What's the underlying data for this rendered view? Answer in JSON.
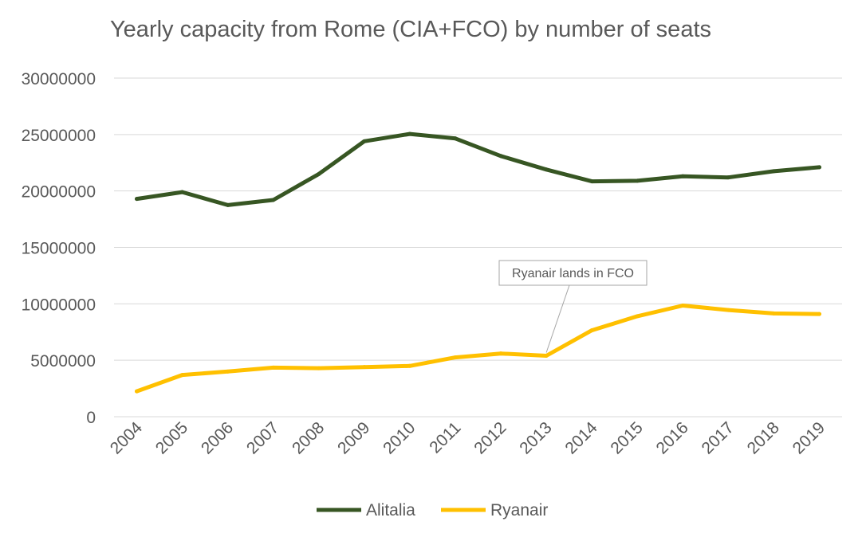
{
  "chart_data": {
    "type": "line",
    "title": "Yearly capacity from Rome (CIA+FCO) by number of seats",
    "xlabel": "",
    "ylabel": "",
    "categories": [
      "2004",
      "2005",
      "2006",
      "2007",
      "2008",
      "2009",
      "2010",
      "2011",
      "2012",
      "2013",
      "2014",
      "2015",
      "2016",
      "2017",
      "2018",
      "2019"
    ],
    "ylim": [
      0,
      30000000
    ],
    "yticks": [
      "0",
      "5000000",
      "10000000",
      "15000000",
      "20000000",
      "25000000",
      "30000000"
    ],
    "grid": true,
    "legend_position": "bottom",
    "series": [
      {
        "name": "Alitalia",
        "color": "#375623",
        "values": [
          19300000,
          19900000,
          18750000,
          19200000,
          21500000,
          24400000,
          25050000,
          24650000,
          23100000,
          21900000,
          20850000,
          20900000,
          21300000,
          21200000,
          21750000,
          22100000
        ]
      },
      {
        "name": "Ryanair",
        "color": "#ffc000",
        "values": [
          2250000,
          3700000,
          4000000,
          4350000,
          4300000,
          4400000,
          4500000,
          5250000,
          5600000,
          5400000,
          7650000,
          8900000,
          9850000,
          9450000,
          9150000,
          9100000
        ]
      }
    ],
    "annotations": [
      {
        "text": "Ryanair lands in FCO",
        "category": "2013",
        "series": "Ryanair"
      }
    ]
  }
}
